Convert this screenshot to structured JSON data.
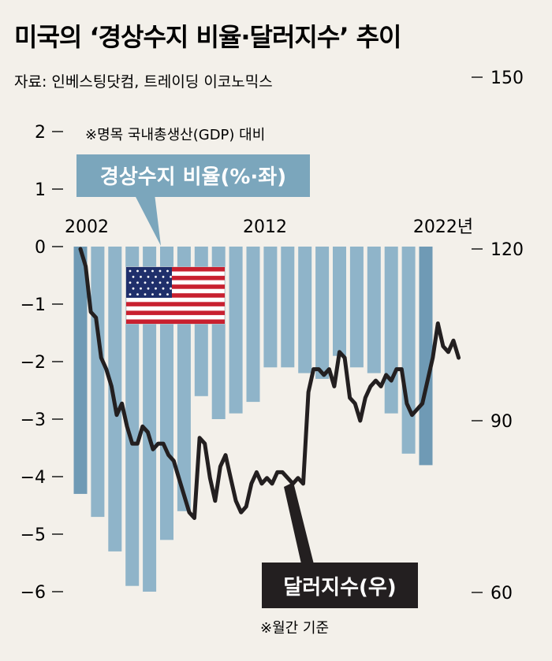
{
  "title": "미국의 ‘경상수지 비율·달러지수’ 추이",
  "source": "자료: 인베스팅닷컴, 트레이딩 이코노믹스",
  "gdp_note": "※명목 국내총생산(GDP) 대비",
  "monthly_note": "※월간 기준",
  "colors": {
    "bar": "#8fb4c9",
    "bar_dark": "#6f9ab5",
    "line": "#231f20",
    "label_box_bar": "#7ba6bc",
    "label_box_line": "#231f20",
    "bg": "#f3f0ea"
  },
  "chart_data": {
    "type": "bar+line",
    "title": "미국의 ‘경상수지 비율·달러지수’ 추이",
    "x_tick_labels": [
      "2002",
      "2012",
      "2022년"
    ],
    "series": [
      {
        "name": "경상수지 비율(%·좌)",
        "type": "bar",
        "axis": "left",
        "categories": [
          "2002",
          "2003",
          "2004",
          "2005",
          "2006",
          "2007",
          "2008",
          "2009",
          "2010",
          "2011",
          "2012",
          "2013",
          "2014",
          "2015",
          "2016",
          "2017",
          "2018",
          "2019",
          "2020",
          "2021",
          "2022"
        ],
        "values": [
          -4.3,
          -4.7,
          -5.3,
          -5.9,
          -6.0,
          -5.1,
          -4.6,
          -2.6,
          -3.0,
          -2.9,
          -2.7,
          -2.1,
          -2.1,
          -2.2,
          -2.3,
          -1.9,
          -2.1,
          -2.2,
          -2.9,
          -3.6,
          -3.8
        ]
      },
      {
        "name": "달러지수(우)",
        "type": "line",
        "axis": "right",
        "x": [
          2002.0,
          2002.3,
          2002.6,
          2002.9,
          2003.2,
          2003.5,
          2003.8,
          2004.1,
          2004.4,
          2004.7,
          2005.0,
          2005.3,
          2005.6,
          2005.9,
          2006.2,
          2006.5,
          2006.8,
          2007.1,
          2007.4,
          2007.7,
          2008.0,
          2008.3,
          2008.6,
          2008.9,
          2009.2,
          2009.5,
          2009.8,
          2010.1,
          2010.4,
          2010.7,
          2011.0,
          2011.3,
          2011.6,
          2011.9,
          2012.2,
          2012.5,
          2012.8,
          2013.1,
          2013.4,
          2013.7,
          2014.0,
          2014.3,
          2014.6,
          2014.9,
          2015.2,
          2015.5,
          2015.8,
          2016.1,
          2016.4,
          2016.7,
          2017.0,
          2017.3,
          2017.6,
          2017.9,
          2018.2,
          2018.5,
          2018.8,
          2019.1,
          2019.4,
          2019.7,
          2020.0,
          2020.3,
          2020.6,
          2020.9,
          2021.2,
          2021.5,
          2021.8,
          2022.1,
          2022.4,
          2022.7,
          2023.0,
          2023.3,
          2023.6,
          2023.9
        ],
        "values": [
          120,
          117,
          109,
          108,
          101,
          99,
          96,
          91,
          93,
          89,
          86,
          86,
          89,
          88,
          85,
          86,
          86,
          84,
          83,
          80,
          77,
          74,
          73,
          87,
          86,
          80,
          76,
          82,
          84,
          80,
          76,
          74,
          75,
          79,
          81,
          79,
          80,
          79,
          81,
          81,
          80,
          79,
          80,
          79,
          95,
          99,
          99,
          98,
          99,
          96,
          102,
          101,
          94,
          93,
          90,
          94,
          96,
          97,
          96,
          98,
          97,
          99,
          99,
          93,
          91,
          92,
          93,
          97,
          101,
          107,
          103,
          102,
          104,
          101
        ]
      }
    ],
    "left_axis": {
      "ticks": [
        2,
        1,
        0,
        -1,
        -2,
        -3,
        -4,
        -5,
        -6
      ],
      "tick_labels": [
        "2",
        "1",
        "0",
        "−1",
        "−2",
        "−3",
        "−4",
        "−5",
        "−6"
      ],
      "range": [
        -6,
        2
      ]
    },
    "right_axis": {
      "ticks": [
        150,
        120,
        90,
        60
      ],
      "range": [
        60,
        150
      ]
    },
    "series_labels": {
      "bar": "경상수지 비율(%·좌)",
      "line": "달러지수(우)"
    }
  }
}
